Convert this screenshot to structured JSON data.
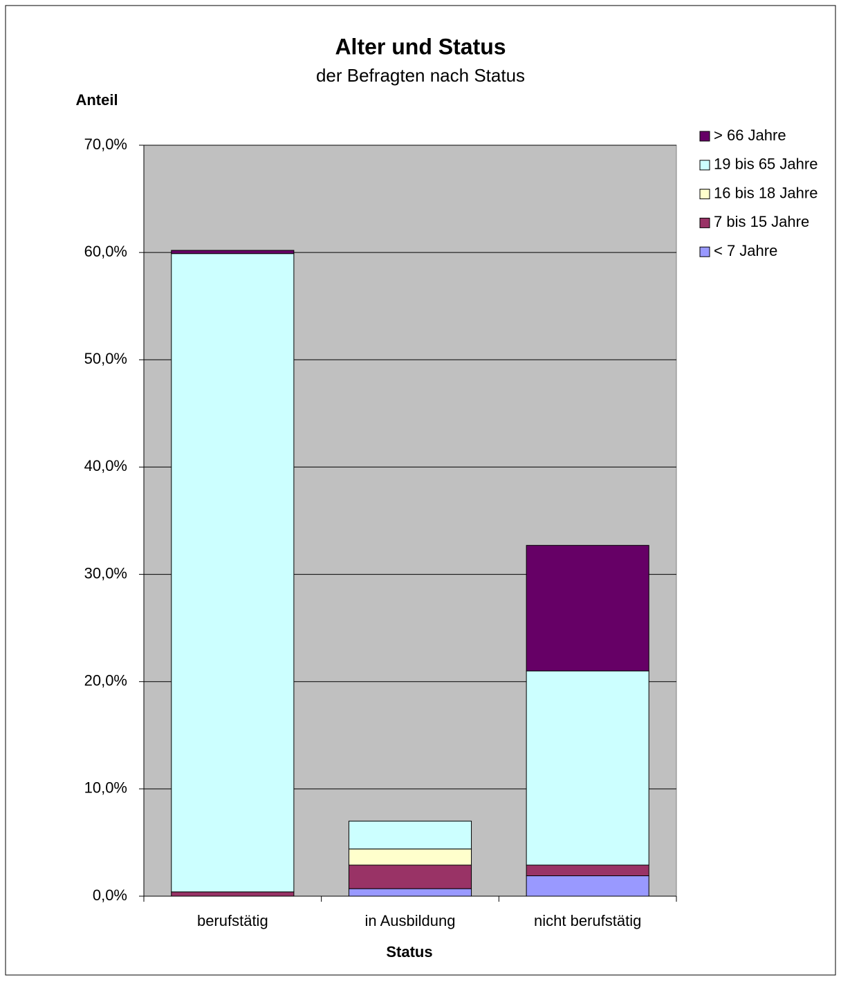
{
  "chart_data": {
    "type": "stacked_bar",
    "title": "Alter und Status",
    "subtitle": "der Befragten nach Status",
    "y_label": "Anteil",
    "x_label": "Status",
    "categories": [
      "berufstätig",
      "in Ausbildung",
      "nicht berufstätig"
    ],
    "series": [
      {
        "name": "< 7 Jahre",
        "color": "#9999ff",
        "values": [
          0,
          0.7,
          1.9
        ]
      },
      {
        "name": "7 bis 15 Jahre",
        "color": "#993366",
        "values": [
          0.4,
          2.2,
          1.0
        ]
      },
      {
        "name": "16 bis 18 Jahre",
        "color": "#ffffcc",
        "values": [
          0,
          1.5,
          0
        ]
      },
      {
        "name": "19 bis 65 Jahre",
        "color": "#ccffff",
        "values": [
          59.5,
          2.6,
          18.1
        ]
      },
      {
        "name": "> 66 Jahre",
        "color": "#660066",
        "values": [
          0.3,
          0,
          11.7
        ]
      }
    ],
    "ylim": [
      0,
      70
    ],
    "yticks": [
      {
        "value": 0,
        "label": "0,0%"
      },
      {
        "value": 10,
        "label": "10,0%"
      },
      {
        "value": 20,
        "label": "20,0%"
      },
      {
        "value": 30,
        "label": "30,0%"
      },
      {
        "value": 40,
        "label": "40,0%"
      },
      {
        "value": 50,
        "label": "50,0%"
      },
      {
        "value": 60,
        "label": "60,0%"
      },
      {
        "value": 70,
        "label": "70,0%"
      }
    ],
    "grid": true,
    "plot_background": "#c0c0c0",
    "legend": "right"
  }
}
